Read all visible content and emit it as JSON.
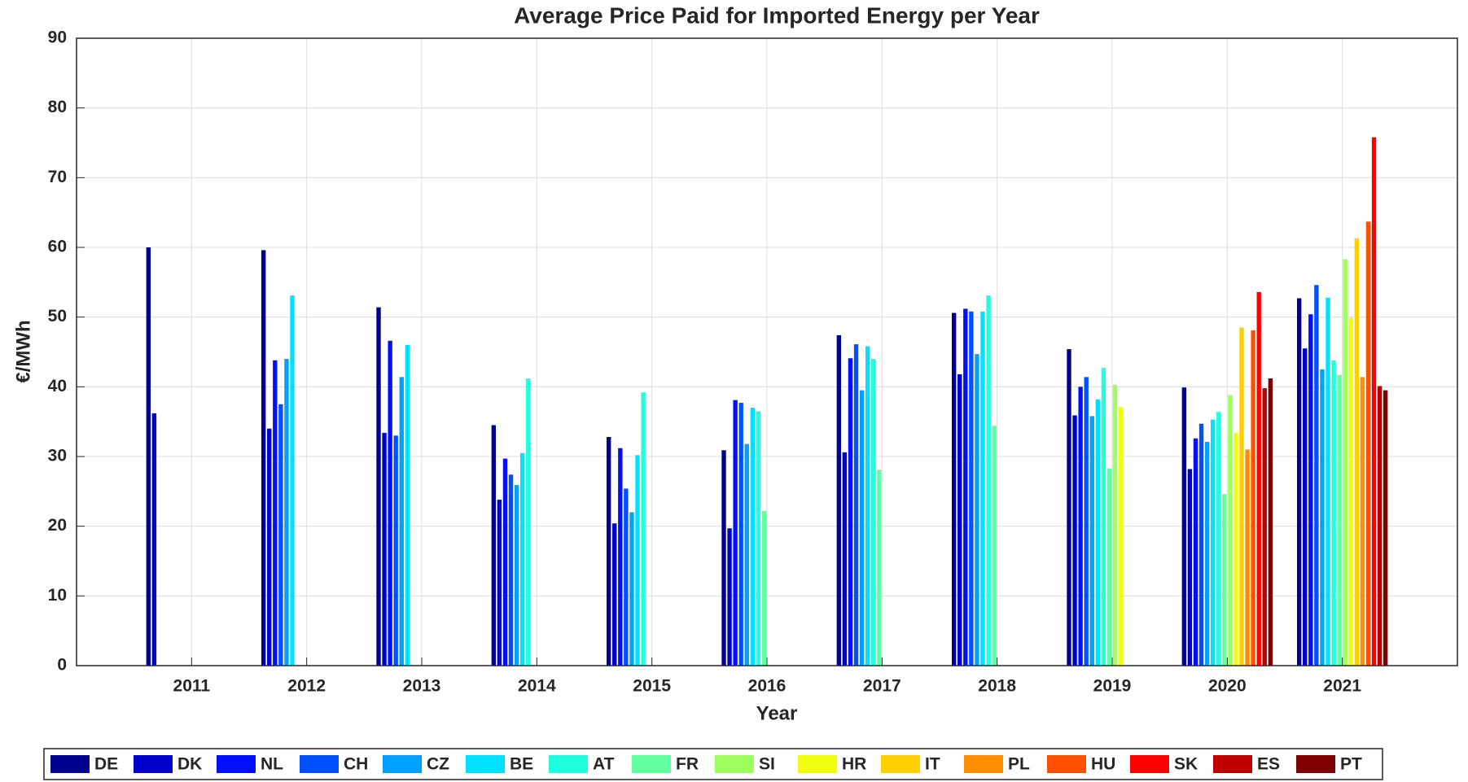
{
  "chart_data": {
    "type": "bar",
    "title": "Average Price Paid for Imported Energy per Year",
    "x_label": "Year",
    "y_label": "€/MWh",
    "x": [
      2011,
      2012,
      2013,
      2014,
      2015,
      2016,
      2017,
      2018,
      2019,
      2020,
      2021
    ],
    "xlim": [
      2010,
      2022
    ],
    "xticks": [
      2011,
      2012,
      2013,
      2014,
      2015,
      2016,
      2017,
      2018,
      2019,
      2020,
      2021
    ],
    "ylim": [
      0,
      90
    ],
    "yticks": [
      0,
      10,
      20,
      30,
      40,
      50,
      60,
      70,
      80,
      90
    ],
    "grid": true,
    "legend": "bottom",
    "series": [
      {
        "name": "DE",
        "color": "#00008f",
        "values": [
          60,
          59.6,
          51.4,
          34.5,
          32.8,
          30.9,
          47.4,
          50.6,
          45.4,
          39.9,
          52.7
        ]
      },
      {
        "name": "DK",
        "color": "#0000cc",
        "values": [
          36.2,
          34,
          33.4,
          23.8,
          20.4,
          19.7,
          30.6,
          41.8,
          35.9,
          28.2,
          45.5
        ]
      },
      {
        "name": "NL",
        "color": "#0010ff",
        "values": [
          null,
          43.8,
          46.6,
          29.7,
          31.2,
          38.1,
          44.1,
          51.2,
          40,
          32.6,
          50.4
        ]
      },
      {
        "name": "CH",
        "color": "#0050ff",
        "values": [
          null,
          37.5,
          33,
          27.4,
          25.4,
          37.7,
          46.1,
          50.8,
          41.4,
          34.7,
          54.6
        ]
      },
      {
        "name": "CZ",
        "color": "#00a0ff",
        "values": [
          null,
          44,
          41.4,
          25.9,
          22,
          31.8,
          39.5,
          44.7,
          35.8,
          32.1,
          42.5
        ]
      },
      {
        "name": "BE",
        "color": "#00e0ff",
        "values": [
          null,
          53.1,
          46,
          30.5,
          30.2,
          37,
          45.8,
          50.8,
          38.2,
          35.3,
          52.8
        ]
      },
      {
        "name": "AT",
        "color": "#20ffe0",
        "values": [
          null,
          null,
          null,
          41.2,
          39.2,
          36.5,
          44,
          53.1,
          42.7,
          36.4,
          43.8
        ]
      },
      {
        "name": "FR",
        "color": "#60ff9f",
        "values": [
          null,
          null,
          null,
          null,
          null,
          22.2,
          28.1,
          34.4,
          28.3,
          24.6,
          41.7
        ]
      },
      {
        "name": "SI",
        "color": "#a0ff60",
        "values": [
          null,
          null,
          null,
          null,
          null,
          null,
          null,
          null,
          40.3,
          38.8,
          58.3
        ]
      },
      {
        "name": "HR",
        "color": "#f0ff10",
        "values": [
          null,
          null,
          null,
          null,
          null,
          null,
          null,
          null,
          37.1,
          33.4,
          49.9
        ]
      },
      {
        "name": "IT",
        "color": "#ffcf00",
        "values": [
          null,
          null,
          null,
          null,
          null,
          null,
          null,
          null,
          null,
          48.5,
          61.3
        ]
      },
      {
        "name": "PL",
        "color": "#ff8f00",
        "values": [
          null,
          null,
          null,
          null,
          null,
          null,
          null,
          null,
          null,
          31,
          41.4
        ]
      },
      {
        "name": "HU",
        "color": "#ff4f00",
        "values": [
          null,
          null,
          null,
          null,
          null,
          null,
          null,
          null,
          null,
          48.1,
          63.7
        ]
      },
      {
        "name": "SK",
        "color": "#ff0000",
        "values": [
          null,
          null,
          null,
          null,
          null,
          null,
          null,
          null,
          null,
          53.6,
          75.8
        ]
      },
      {
        "name": "ES",
        "color": "#c00000",
        "values": [
          null,
          null,
          null,
          null,
          null,
          null,
          null,
          null,
          null,
          39.8,
          40.1
        ]
      },
      {
        "name": "PT",
        "color": "#800000",
        "values": [
          null,
          null,
          null,
          null,
          null,
          null,
          null,
          null,
          null,
          41.2,
          39.5
        ]
      }
    ]
  }
}
